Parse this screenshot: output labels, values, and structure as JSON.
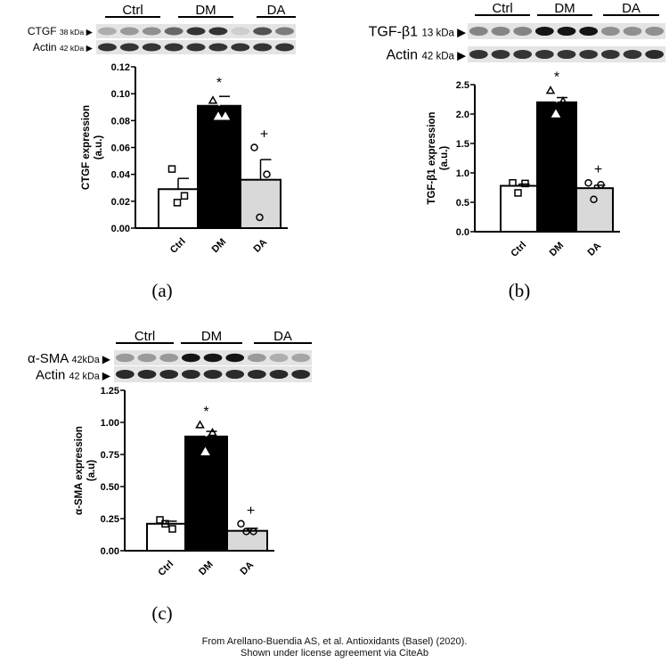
{
  "footer": {
    "line1": "From Arellano-Buendia AS, et al. Antioxidants (Basel) (2020).",
    "line2": "Shown under license agreement via CiteAb"
  },
  "colors": {
    "ctrl_bar": "#ffffff",
    "dm_bar": "#000000",
    "da_bar": "#d9d9d9",
    "axis": "#000000"
  },
  "chart_data": [
    {
      "panel": "(a)",
      "type": "bar",
      "blot": {
        "groups": [
          "Ctrl",
          "DM",
          "DA"
        ],
        "rows": [
          {
            "label": "CTGF",
            "size": "38 kDa",
            "band_intensity": [
              0.25,
              0.35,
              0.4,
              0.6,
              0.85,
              0.85,
              0.1,
              0.7,
              0.5
            ]
          },
          {
            "label": "Actin",
            "size": "42 kDa",
            "band_intensity": [
              0.85,
              0.85,
              0.85,
              0.85,
              0.85,
              0.85,
              0.85,
              0.85,
              0.85
            ]
          }
        ]
      },
      "categories": [
        "Ctrl",
        "DM",
        "DA"
      ],
      "values": [
        0.029,
        0.091,
        0.036
      ],
      "sem": [
        0.008,
        0.007,
        0.015
      ],
      "points": [
        [
          0.044,
          0.024,
          0.019
        ],
        [
          0.095,
          0.083,
          0.083
        ],
        [
          0.06,
          0.04,
          0.008
        ]
      ],
      "markers": [
        "square",
        "triangle",
        "circle"
      ],
      "significance": [
        "",
        "*",
        "+"
      ],
      "ylabel": "CTGF expression",
      "ylabel2": "(a.u.)",
      "ylim": [
        0,
        0.12
      ],
      "yticks": [
        "0.00",
        "0.02",
        "0.04",
        "0.06",
        "0.08",
        "0.10",
        "0.12"
      ],
      "grid": false
    },
    {
      "panel": "(b)",
      "type": "bar",
      "blot": {
        "groups": [
          "Ctrl",
          "DM",
          "DA"
        ],
        "rows": [
          {
            "label": "TGF-β1",
            "size": "13 kDa",
            "band_intensity": [
              0.45,
              0.45,
              0.45,
              1,
              1,
              1,
              0.4,
              0.4,
              0.4
            ]
          },
          {
            "label": "Actin",
            "size": "42 kDa",
            "band_intensity": [
              0.85,
              0.85,
              0.85,
              0.85,
              0.85,
              0.85,
              0.85,
              0.85,
              0.9
            ]
          }
        ]
      },
      "categories": [
        "Ctrl",
        "DM",
        "DA"
      ],
      "values": [
        0.78,
        2.2,
        0.74
      ],
      "sem": [
        0.03,
        0.08,
        0.05
      ],
      "points": [
        [
          0.83,
          0.82,
          0.66
        ],
        [
          2.4,
          2.22,
          2.0
        ],
        [
          0.83,
          0.8,
          0.55
        ]
      ],
      "markers": [
        "square",
        "triangle",
        "circle"
      ],
      "significance": [
        "",
        "*",
        "+"
      ],
      "ylabel": "TGF-β1 expression",
      "ylabel2": "(a.u.)",
      "ylim": [
        0,
        2.5
      ],
      "yticks": [
        "0.0",
        "0.5",
        "1.0",
        "1.5",
        "2.0",
        "2.5"
      ],
      "grid": false
    },
    {
      "panel": "(c)",
      "type": "bar",
      "blot": {
        "groups": [
          "Ctrl",
          "DM",
          "DA"
        ],
        "rows": [
          {
            "label": "α-SMA",
            "size": "42kDa",
            "band_intensity": [
              0.35,
              0.35,
              0.35,
              1,
              1,
              1,
              0.35,
              0.25,
              0.3
            ]
          },
          {
            "label": "Actin",
            "size": "42 kDa",
            "band_intensity": [
              0.9,
              0.9,
              0.9,
              0.9,
              0.9,
              0.9,
              0.9,
              0.9,
              0.9
            ]
          }
        ]
      },
      "categories": [
        "Ctrl",
        "DM",
        "DA"
      ],
      "values": [
        0.21,
        0.89,
        0.155
      ],
      "sem": [
        0.02,
        0.04,
        0.02
      ],
      "points": [
        [
          0.24,
          0.17,
          0.21
        ],
        [
          0.98,
          0.92,
          0.77
        ],
        [
          0.21,
          0.15,
          0.15
        ]
      ],
      "markers": [
        "square",
        "triangle",
        "circle"
      ],
      "significance": [
        "",
        "*",
        "+"
      ],
      "ylabel": "α-SMA expression",
      "ylabel2": "(a.u)",
      "ylim": [
        0,
        1.25
      ],
      "yticks": [
        "0.00",
        "0.25",
        "0.50",
        "0.75",
        "1.00",
        "1.25"
      ],
      "grid": false
    }
  ]
}
